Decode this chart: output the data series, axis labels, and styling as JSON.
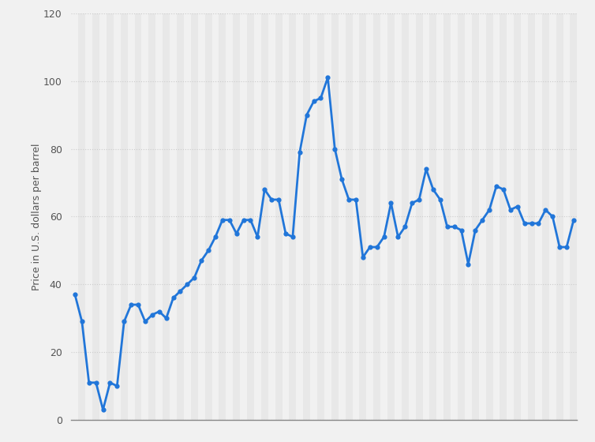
{
  "values": [
    37,
    29,
    11,
    11,
    3,
    11,
    10,
    29,
    34,
    34,
    29,
    31,
    32,
    30,
    36,
    38,
    40,
    42,
    47,
    50,
    54,
    59,
    59,
    55,
    59,
    59,
    54,
    68,
    65,
    65,
    55,
    54,
    79,
    90,
    94,
    95,
    101,
    80,
    71,
    65,
    65,
    48,
    51,
    51,
    54,
    64,
    54,
    57,
    64,
    65,
    74,
    68,
    65,
    57,
    57,
    56,
    46,
    56,
    59,
    62,
    69,
    68,
    62,
    63,
    58,
    58,
    58,
    62,
    60,
    51,
    51,
    59
  ],
  "line_color": "#2176d9",
  "marker_color": "#2176d9",
  "ylabel": "Price in U.S. dollars per barrel",
  "ylim": [
    0,
    120
  ],
  "yticks": [
    0,
    20,
    40,
    60,
    80,
    100,
    120
  ],
  "bg_color": "#f1f1f1",
  "plot_bg_color": "#f1f1f1",
  "stripe_light": "#f1f1f1",
  "stripe_dark": "#e8e8e8",
  "grid_color": "#cccccc",
  "line_width": 2.0,
  "marker_size": 4.5,
  "marker_style": "o"
}
